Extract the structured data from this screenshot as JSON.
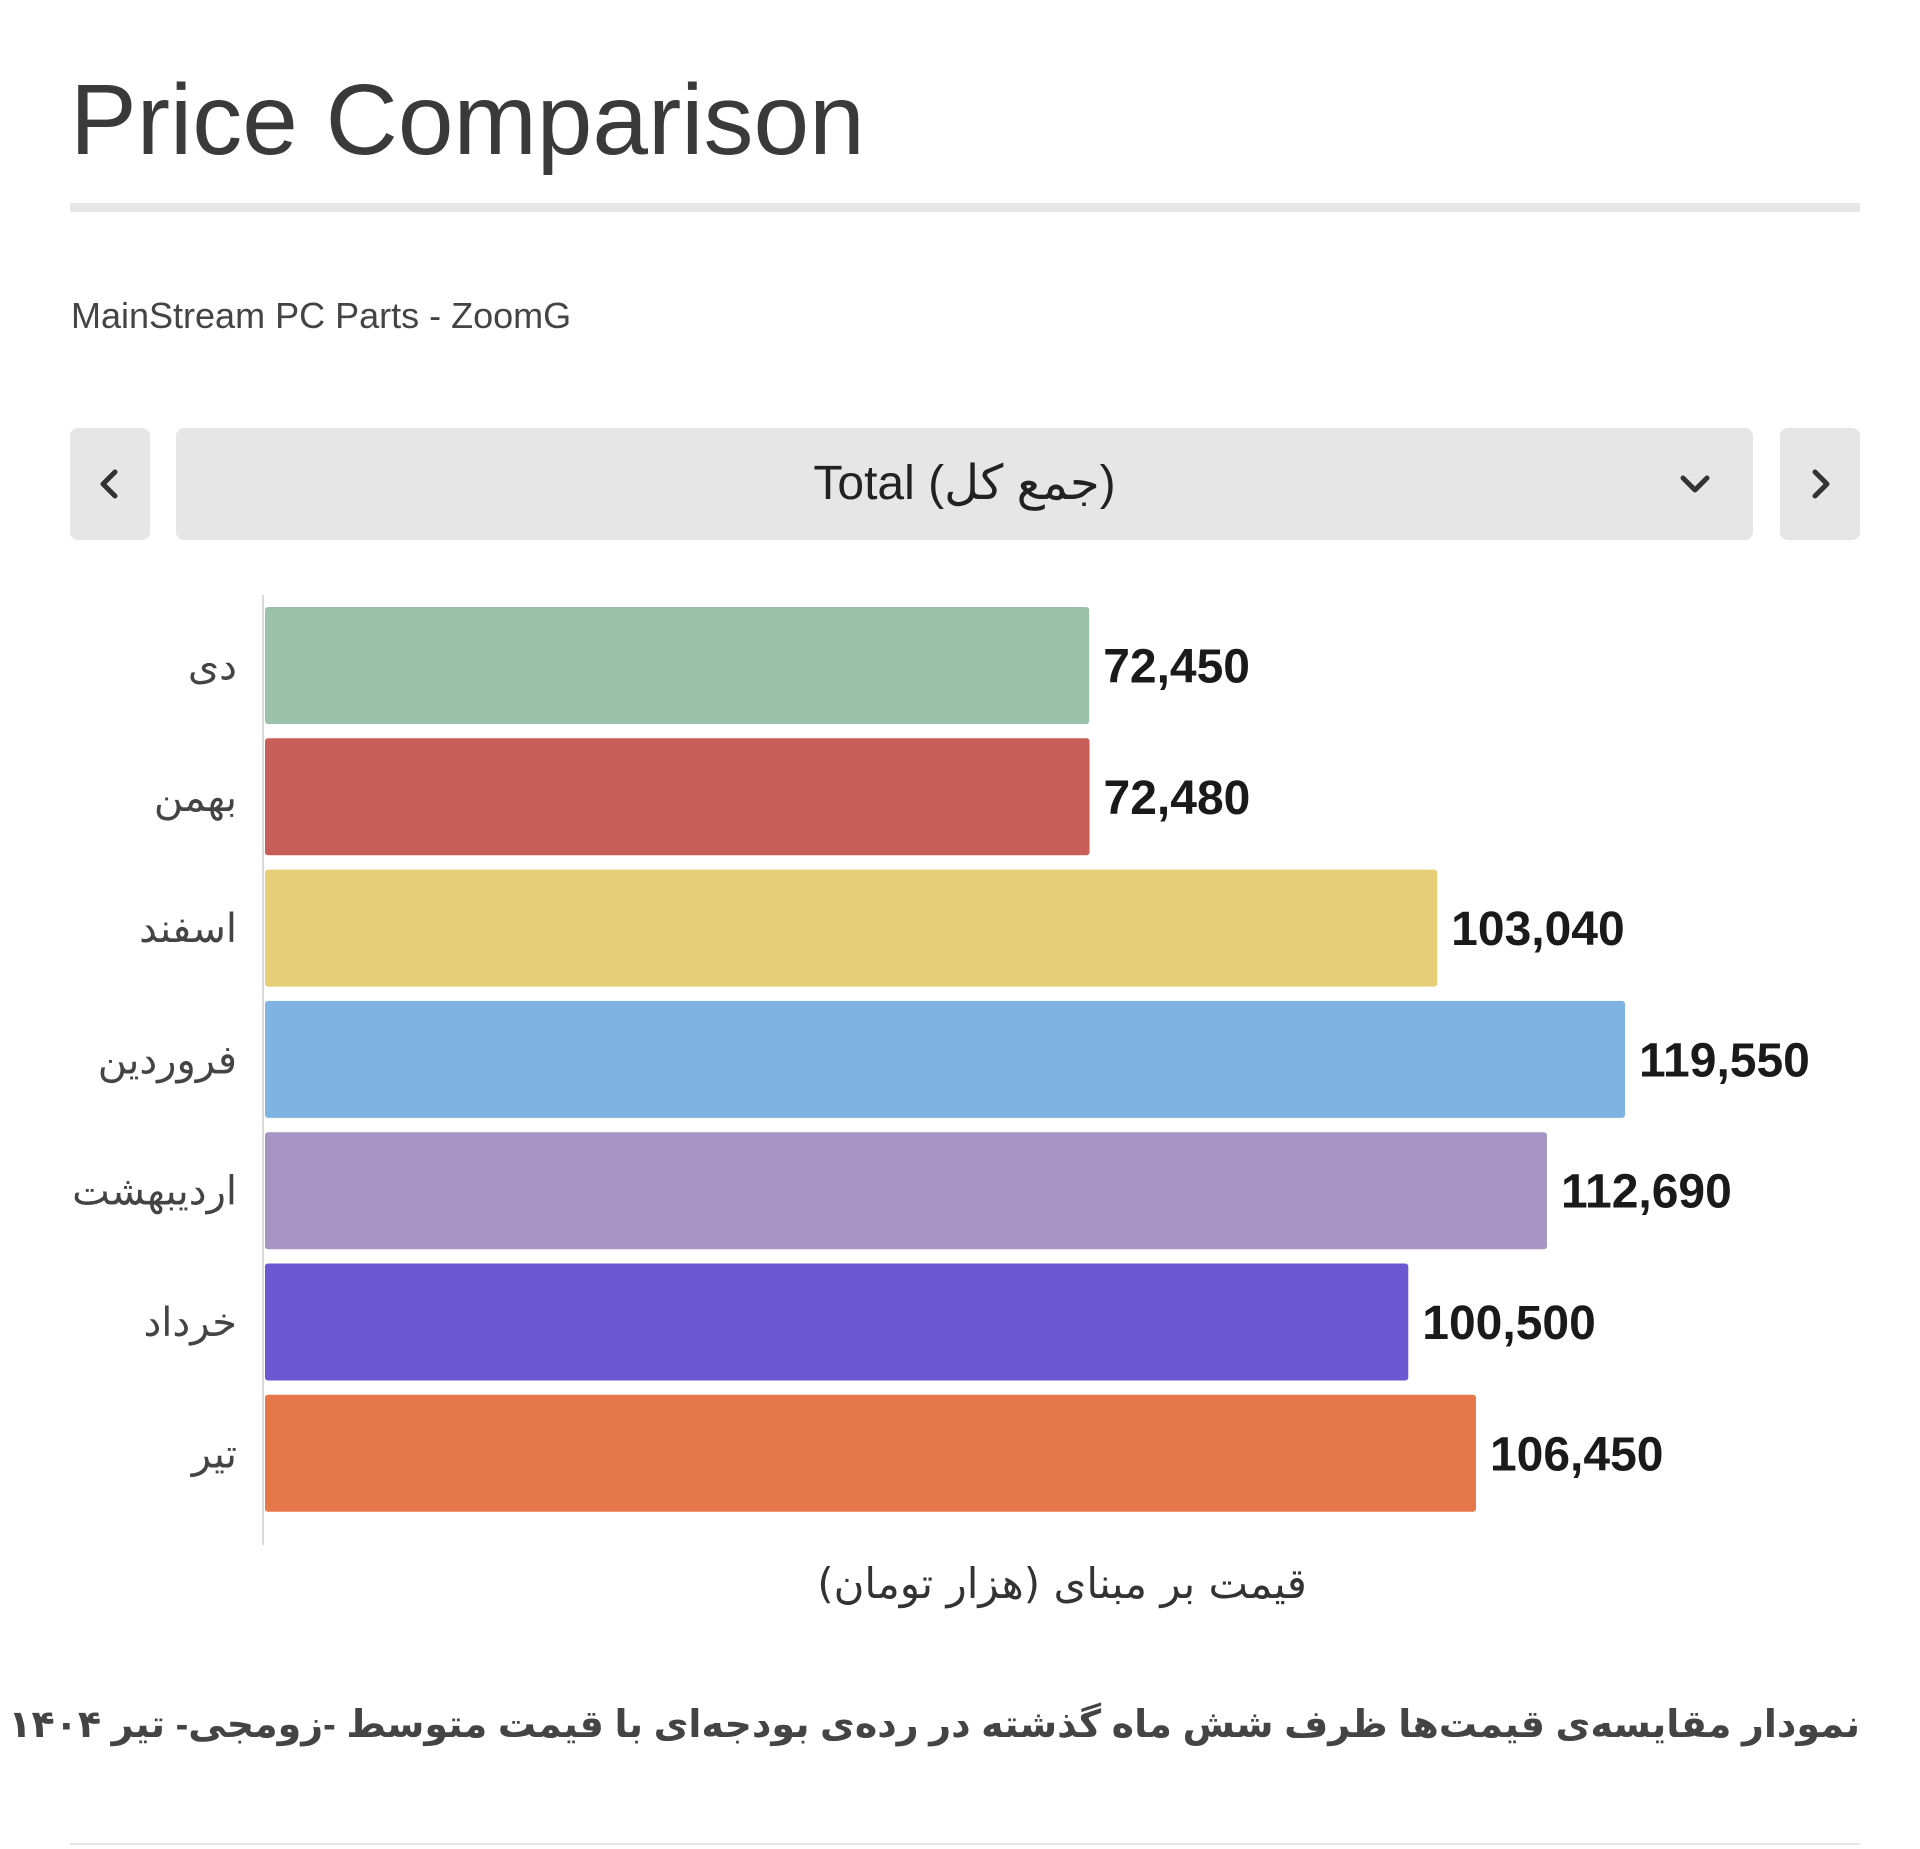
{
  "header": {
    "title": "Price Comparison",
    "subtitle": "MainStream PC Parts - ZoomG"
  },
  "selector": {
    "selected_label": "Total (جمع کل)",
    "prev_icon": "chevron-left-icon",
    "next_icon": "chevron-right-icon",
    "dropdown_icon": "chevron-down-icon"
  },
  "chart_data": {
    "type": "bar",
    "orientation": "horizontal",
    "categories": [
      "دی",
      "بهمن",
      "اسفند",
      "فروردین",
      "اردیبهشت",
      "خرداد",
      "تیر"
    ],
    "value_labels": [
      "72,450",
      "72,480",
      "103,040",
      "119,550",
      "112,690",
      "100,500",
      "106,450"
    ],
    "values": [
      72450,
      72480,
      103040,
      119550,
      112690,
      100500,
      106450
    ],
    "colors": [
      "#9bc1a8",
      "#c75f58",
      "#e6cd77",
      "#7fb3e1",
      "#a794c3",
      "#6c57d3",
      "#e57748"
    ],
    "xlabel": "قیمت بر مبنای (هزار تومان)",
    "ylabel": "",
    "xlim": [
      0,
      120000
    ],
    "grid": false,
    "legend": "none"
  },
  "footer": {
    "caption": "نمودار مقایسه‌ی قیمت‌ها ظرف شش ماه گذشته در رده‌ی بودجه‌ای با قیمت متوسط -زومجی- تیر ۱۴۰۴"
  }
}
